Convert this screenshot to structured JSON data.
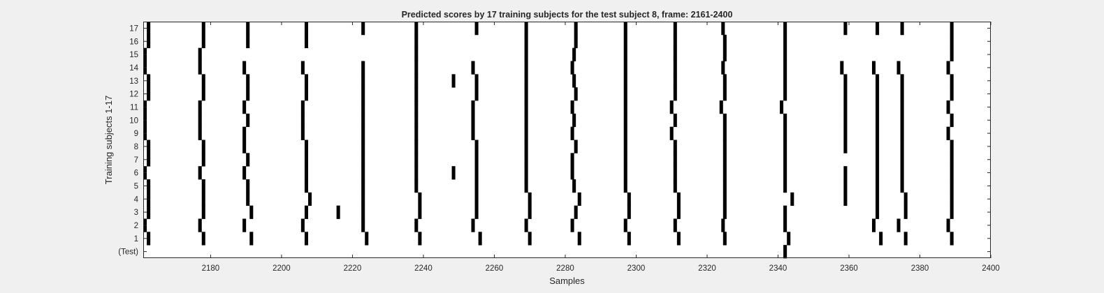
{
  "chart_data": {
    "type": "heatmap",
    "title": "Predicted scores by 17 training subjects for the test subject 8, frame: 2161-2400",
    "xlabel": "Samples",
    "ylabel": "Training subjects 1-17",
    "xlim": [
      2161,
      2400
    ],
    "xticks": [
      2180,
      2200,
      2220,
      2240,
      2260,
      2280,
      2300,
      2320,
      2340,
      2360,
      2380,
      2400
    ],
    "row_labels": [
      "17",
      "16",
      "15",
      "14",
      "13",
      "12",
      "11",
      "10",
      "9",
      "8",
      "7",
      "6",
      "5",
      "4",
      "3",
      "2",
      "1",
      "(Test)"
    ],
    "grid": false,
    "colors": {
      "mark": "#000000",
      "background": "#ffffff",
      "figure": "#f0f0f0",
      "axis": "#262626"
    },
    "rows": [
      {
        "label": "17",
        "x": [
          2162.5,
          2178.0,
          2190.5,
          2207.0,
          2223.0,
          2238.0,
          2255.0,
          2269.0,
          2283.0,
          2297.0,
          2311.0,
          2324.5,
          2342.0,
          2359.0,
          2368.0,
          2375.0,
          2389.0
        ]
      },
      {
        "label": "16",
        "x": [
          2162.5,
          2178.0,
          2190.5,
          2207.0,
          2238.0,
          2269.0,
          2283.0,
          2297.0,
          2311.0,
          2325.0,
          2342.0,
          2389.0
        ]
      },
      {
        "label": "15",
        "x": [
          2161.5,
          2177.0,
          2238.0,
          2269.0,
          2282.5,
          2297.0,
          2311.0,
          2325.0,
          2342.0,
          2389.0
        ]
      },
      {
        "label": "14",
        "x": [
          2161.5,
          2177.0,
          2189.5,
          2206.0,
          2223.0,
          2238.0,
          2254.0,
          2269.0,
          2282.0,
          2297.0,
          2311.0,
          2324.5,
          2342.0,
          2358.0,
          2367.0,
          2374.0,
          2388.0
        ]
      },
      {
        "label": "13",
        "x": [
          2162.5,
          2178.0,
          2190.5,
          2207.0,
          2223.0,
          2238.0,
          2248.5,
          2255.0,
          2269.0,
          2282.5,
          2297.0,
          2311.0,
          2325.0,
          2342.0,
          2359.0,
          2368.0,
          2375.0,
          2389.0
        ]
      },
      {
        "label": "12",
        "x": [
          2162.5,
          2178.0,
          2190.5,
          2207.0,
          2223.0,
          2238.0,
          2255.0,
          2269.0,
          2283.0,
          2297.0,
          2311.0,
          2325.0,
          2342.0,
          2359.0,
          2368.0,
          2375.0,
          2389.0
        ]
      },
      {
        "label": "11",
        "x": [
          2161.5,
          2177.0,
          2189.5,
          2206.0,
          2223.0,
          2238.0,
          2254.0,
          2269.0,
          2282.0,
          2297.0,
          2310.0,
          2324.0,
          2341.0,
          2359.0,
          2368.0,
          2375.0,
          2388.0
        ]
      },
      {
        "label": "10",
        "x": [
          2161.5,
          2177.0,
          2190.5,
          2206.0,
          2223.0,
          2238.0,
          2254.0,
          2269.0,
          2282.5,
          2297.0,
          2311.0,
          2325.0,
          2342.0,
          2359.0,
          2368.0,
          2375.0,
          2389.0
        ]
      },
      {
        "label": "9",
        "x": [
          2161.5,
          2177.0,
          2189.5,
          2206.0,
          2223.0,
          2238.0,
          2254.0,
          2269.0,
          2282.0,
          2297.0,
          2310.0,
          2325.0,
          2342.0,
          2359.0,
          2368.0,
          2375.0,
          2388.0
        ]
      },
      {
        "label": "8",
        "x": [
          2162.5,
          2178.0,
          2189.5,
          2207.0,
          2223.0,
          2238.0,
          2255.0,
          2269.0,
          2283.0,
          2297.0,
          2311.0,
          2325.0,
          2342.0,
          2359.0,
          2368.0,
          2375.0,
          2389.0
        ]
      },
      {
        "label": "7",
        "x": [
          2162.5,
          2178.0,
          2190.5,
          2207.0,
          2223.0,
          2238.0,
          2255.0,
          2269.0,
          2282.0,
          2297.0,
          2311.0,
          2325.0,
          2342.0,
          2368.0,
          2375.0,
          2389.0
        ]
      },
      {
        "label": "6",
        "x": [
          2161.5,
          2177.0,
          2189.5,
          2207.0,
          2223.0,
          2238.0,
          2248.5,
          2255.0,
          2269.0,
          2282.0,
          2297.0,
          2311.0,
          2325.0,
          2342.0,
          2359.0,
          2368.0,
          2375.0,
          2389.0
        ]
      },
      {
        "label": "5",
        "x": [
          2162.5,
          2178.0,
          2190.5,
          2207.0,
          2223.0,
          2238.0,
          2255.0,
          2269.0,
          2282.5,
          2297.0,
          2311.0,
          2325.0,
          2342.0,
          2359.0,
          2368.0,
          2375.0,
          2389.0
        ]
      },
      {
        "label": "4",
        "x": [
          2162.5,
          2178.0,
          2190.5,
          2208.0,
          2223.0,
          2239.0,
          2255.0,
          2270.0,
          2284.0,
          2298.0,
          2312.0,
          2325.0,
          2344.0,
          2359.0,
          2368.0,
          2376.0,
          2389.0
        ]
      },
      {
        "label": "3",
        "x": [
          2162.5,
          2178.0,
          2191.5,
          2207.0,
          2216.0,
          2223.0,
          2239.0,
          2255.0,
          2270.0,
          2283.0,
          2298.0,
          2312.0,
          2325.0,
          2342.0,
          2368.0,
          2376.0,
          2389.0
        ]
      },
      {
        "label": "2",
        "x": [
          2161.5,
          2177.0,
          2189.5,
          2206.0,
          2223.0,
          2238.0,
          2254.0,
          2269.0,
          2282.0,
          2297.0,
          2311.0,
          2324.5,
          2342.0,
          2367.0,
          2374.0,
          2388.0
        ]
      },
      {
        "label": "1",
        "x": [
          2162.5,
          2178.0,
          2191.5,
          2207.0,
          2224.0,
          2239.0,
          2256.0,
          2270.0,
          2284.0,
          2298.0,
          2312.0,
          2325.0,
          2343.0,
          2369.0,
          2376.0,
          2389.0
        ]
      },
      {
        "label": "(Test)",
        "x": [
          2342.0
        ]
      }
    ]
  }
}
